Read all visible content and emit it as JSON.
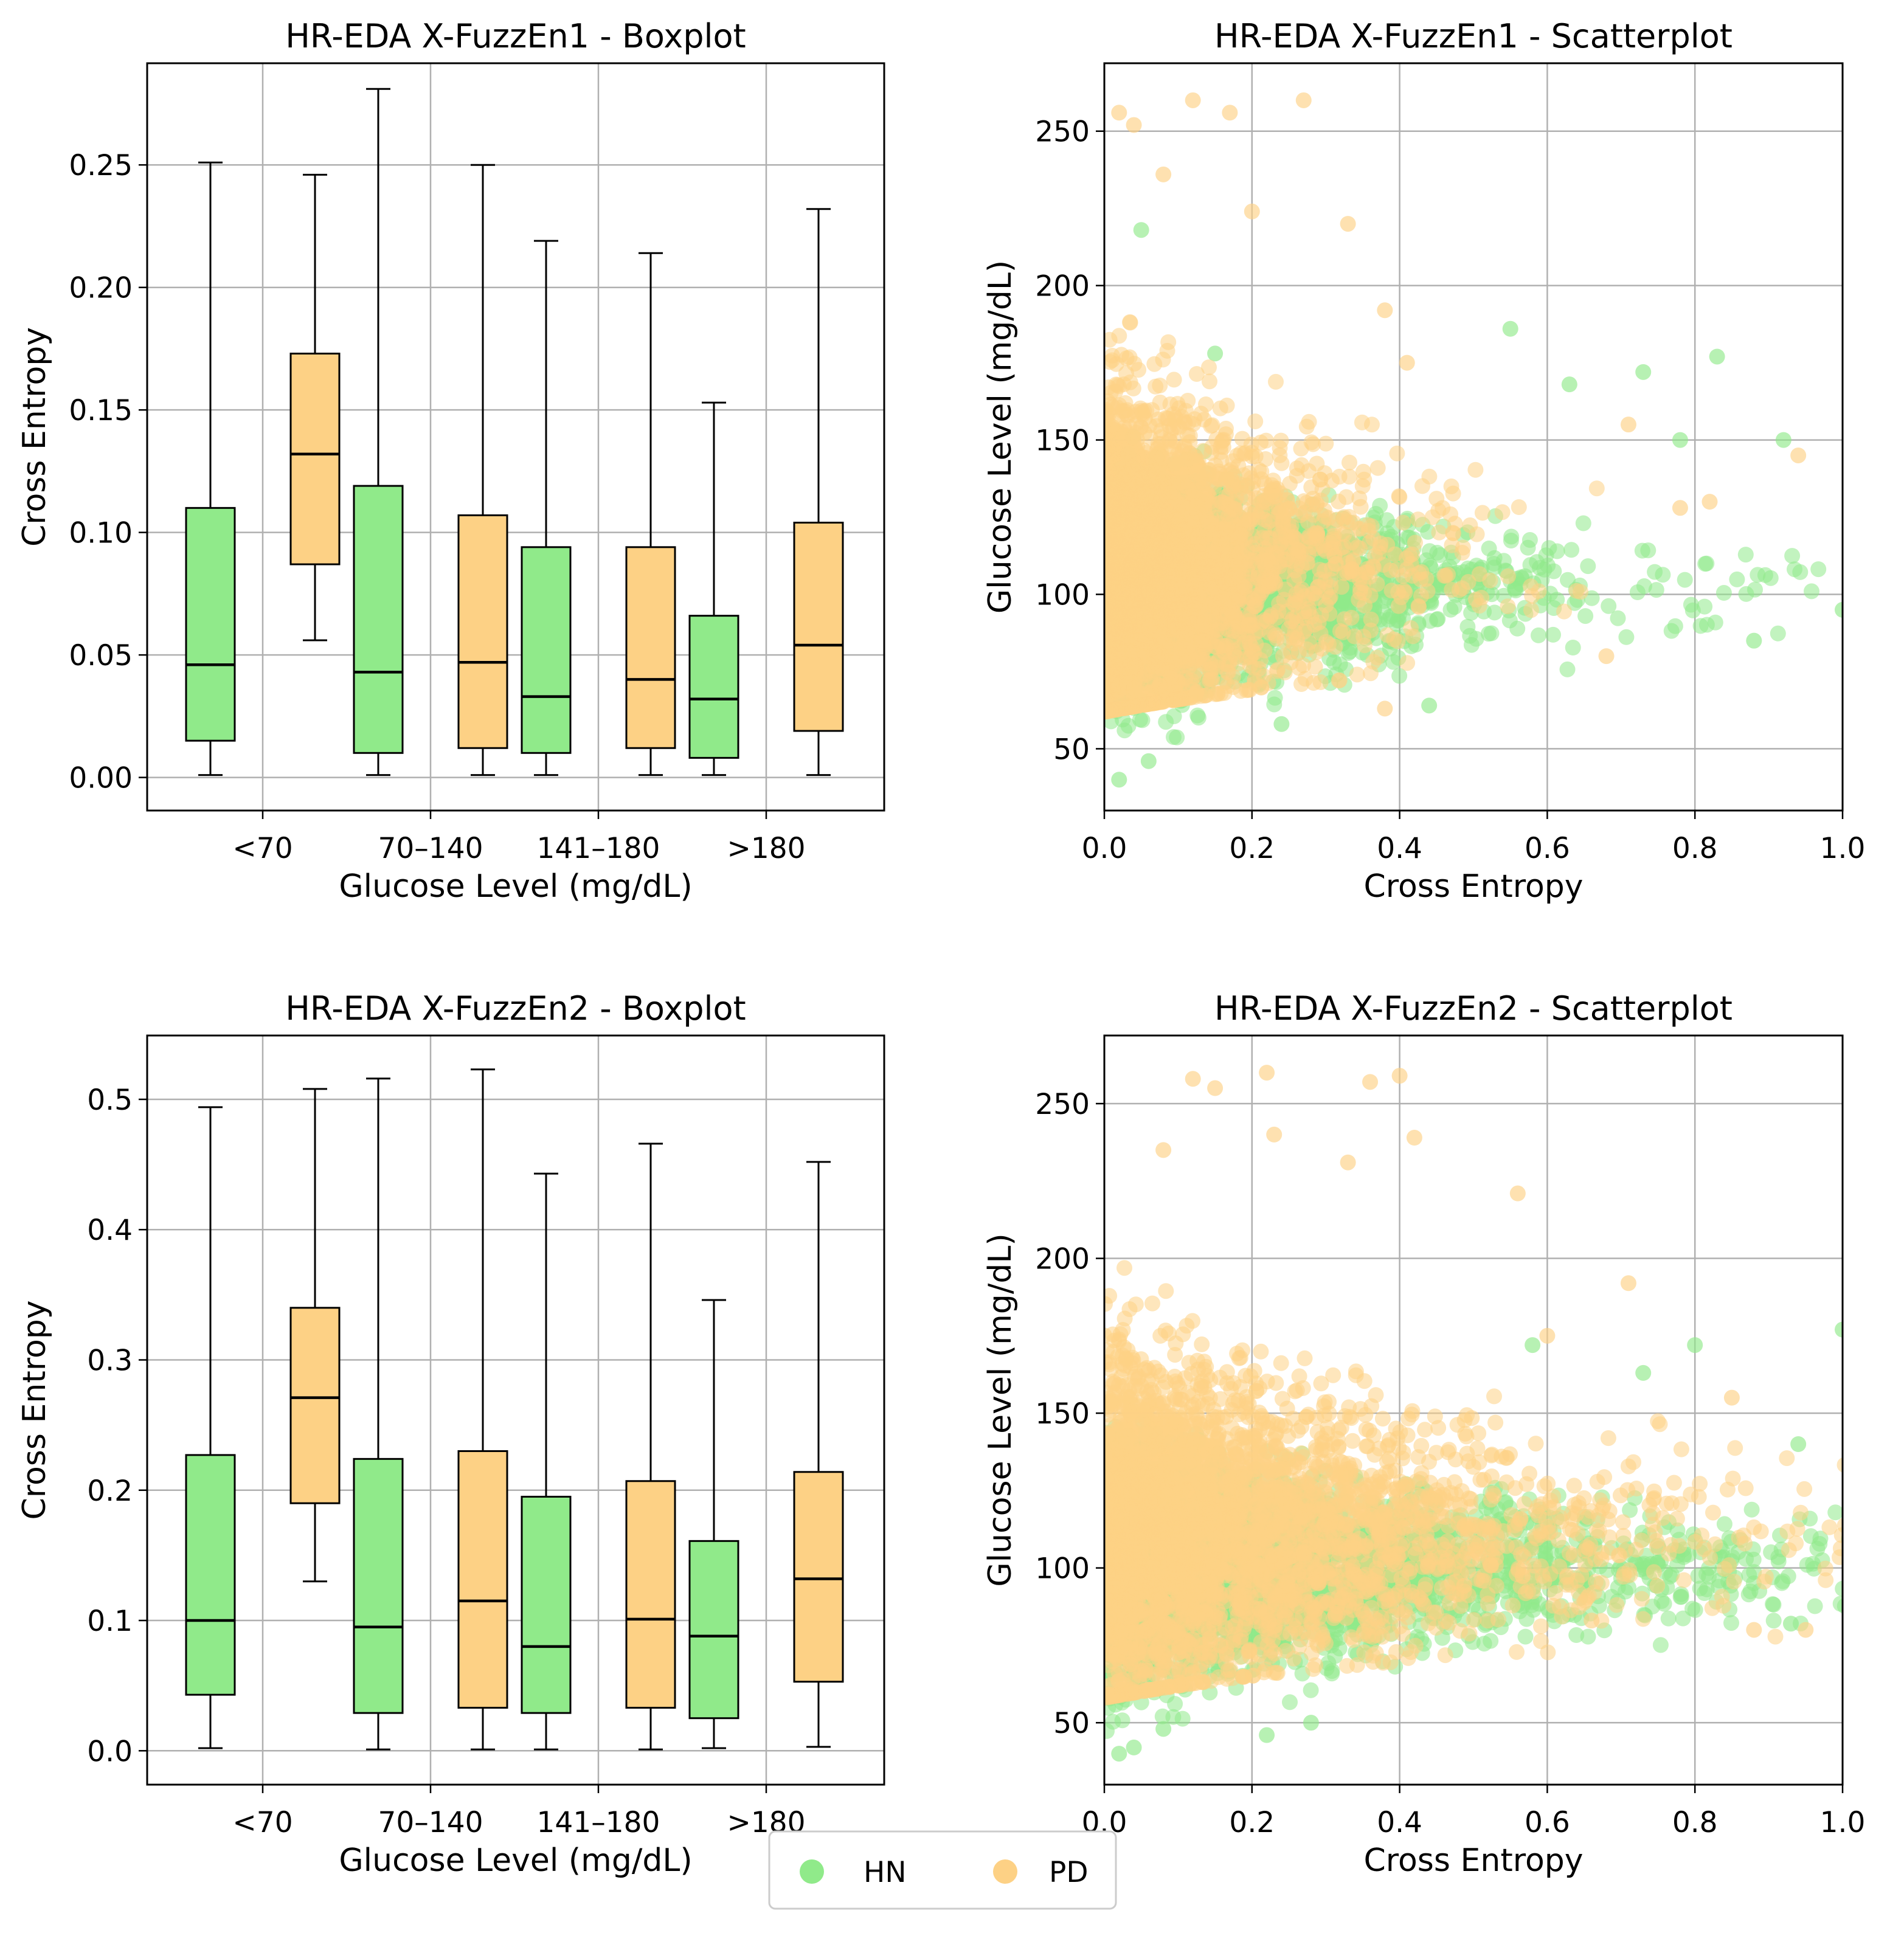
{
  "colors": {
    "hn": "#90ea8a",
    "pd": "#fdd185",
    "grid": "#b0b0b0",
    "frame": "#000000"
  },
  "legend": {
    "placement": "bottom-center",
    "items": [
      {
        "label": "HN",
        "color": "#90ea8a"
      },
      {
        "label": "PD",
        "color": "#fdd185"
      }
    ]
  },
  "chart_data": [
    {
      "type": "box",
      "title": "HR-EDA X-FuzzEn1 - Boxplot",
      "xlabel": "Glucose Level (mg/dL)",
      "ylabel": "Cross Entropy",
      "categories": [
        "<70",
        "70–140",
        "141–180",
        ">180"
      ],
      "ylim": [
        -0.0135,
        0.2915
      ],
      "yticks": [
        0.0,
        0.05,
        0.1,
        0.15,
        0.2,
        0.25
      ],
      "ytick_labels": [
        "0.00",
        "0.05",
        "0.10",
        "0.15",
        "0.20",
        "0.25"
      ],
      "grid": true,
      "series": [
        {
          "name": "HN",
          "boxes": [
            {
              "whislo": 0.001,
              "q1": 0.015,
              "med": 0.046,
              "q3": 0.11,
              "whishi": 0.251
            },
            {
              "whislo": 0.001,
              "q1": 0.01,
              "med": 0.043,
              "q3": 0.119,
              "whishi": 0.281
            },
            {
              "whislo": 0.001,
              "q1": 0.01,
              "med": 0.033,
              "q3": 0.094,
              "whishi": 0.219
            },
            {
              "whislo": 0.001,
              "q1": 0.008,
              "med": 0.032,
              "q3": 0.066,
              "whishi": 0.153
            }
          ]
        },
        {
          "name": "PD",
          "boxes": [
            {
              "whislo": 0.056,
              "q1": 0.087,
              "med": 0.132,
              "q3": 0.173,
              "whishi": 0.246
            },
            {
              "whislo": 0.001,
              "q1": 0.012,
              "med": 0.047,
              "q3": 0.107,
              "whishi": 0.25
            },
            {
              "whislo": 0.001,
              "q1": 0.012,
              "med": 0.04,
              "q3": 0.094,
              "whishi": 0.214
            },
            {
              "whislo": 0.001,
              "q1": 0.019,
              "med": 0.054,
              "q3": 0.104,
              "whishi": 0.232
            }
          ]
        }
      ]
    },
    {
      "type": "scatter",
      "title": "HR-EDA X-FuzzEn1 - Scatterplot",
      "xlabel": "Cross Entropy",
      "ylabel": "Glucose Level (mg/dL)",
      "xlim": [
        0.0,
        1.0
      ],
      "ylim": [
        30,
        272
      ],
      "xticks": [
        0.0,
        0.2,
        0.4,
        0.6,
        0.8,
        1.0
      ],
      "xtick_labels": [
        "0.0",
        "0.2",
        "0.4",
        "0.6",
        "0.8",
        "1.0"
      ],
      "yticks": [
        50,
        100,
        150,
        200,
        250
      ],
      "ytick_labels": [
        "50",
        "100",
        "150",
        "200",
        "250"
      ],
      "grid": true,
      "seed": 11,
      "series": [
        {
          "name": "HN",
          "n": 3200,
          "x_decay": 0.15,
          "y_center": 102,
          "y_spread": 18,
          "y_low": 40,
          "y_high": 185,
          "points": [
            [
              0.83,
              177
            ],
            [
              0.73,
              172
            ],
            [
              0.55,
              186
            ],
            [
              0.63,
              168
            ],
            [
              0.78,
              150
            ],
            [
              0.92,
              150
            ],
            [
              1.0,
              95
            ],
            [
              0.02,
              40
            ],
            [
              0.06,
              46
            ],
            [
              0.24,
              58
            ],
            [
              0.44,
              64
            ],
            [
              0.88,
              85
            ],
            [
              0.15,
              178
            ],
            [
              0.05,
              218
            ]
          ]
        },
        {
          "name": "PD",
          "n": 3400,
          "x_decay": 0.1,
          "y_center": 110,
          "y_spread": 28,
          "y_low": 62,
          "y_high": 262,
          "points": [
            [
              0.12,
              260
            ],
            [
              0.27,
              260
            ],
            [
              0.02,
              256
            ],
            [
              0.04,
              252
            ],
            [
              0.17,
              256
            ],
            [
              0.2,
              224
            ],
            [
              0.08,
              236
            ],
            [
              0.33,
              220
            ],
            [
              0.38,
              192
            ],
            [
              0.41,
              175
            ],
            [
              0.71,
              155
            ],
            [
              0.78,
              128
            ],
            [
              0.82,
              130
            ],
            [
              0.94,
              145
            ],
            [
              0.68,
              80
            ],
            [
              0.38,
              63
            ]
          ]
        }
      ]
    },
    {
      "type": "box",
      "title": "HR-EDA X-FuzzEn2 - Boxplot",
      "xlabel": "Glucose Level (mg/dL)",
      "ylabel": "Cross Entropy",
      "categories": [
        "<70",
        "70–140",
        "141–180",
        ">180"
      ],
      "ylim": [
        -0.026,
        0.549
      ],
      "yticks": [
        0.0,
        0.1,
        0.2,
        0.3,
        0.4,
        0.5
      ],
      "ytick_labels": [
        "0.0",
        "0.1",
        "0.2",
        "0.3",
        "0.4",
        "0.5"
      ],
      "grid": true,
      "series": [
        {
          "name": "HN",
          "boxes": [
            {
              "whislo": 0.002,
              "q1": 0.043,
              "med": 0.1,
              "q3": 0.227,
              "whishi": 0.494
            },
            {
              "whislo": 0.001,
              "q1": 0.029,
              "med": 0.095,
              "q3": 0.224,
              "whishi": 0.516
            },
            {
              "whislo": 0.001,
              "q1": 0.029,
              "med": 0.08,
              "q3": 0.195,
              "whishi": 0.443
            },
            {
              "whislo": 0.002,
              "q1": 0.025,
              "med": 0.088,
              "q3": 0.161,
              "whishi": 0.346
            }
          ]
        },
        {
          "name": "PD",
          "boxes": [
            {
              "whislo": 0.13,
              "q1": 0.19,
              "med": 0.271,
              "q3": 0.34,
              "whishi": 0.508
            },
            {
              "whislo": 0.001,
              "q1": 0.033,
              "med": 0.115,
              "q3": 0.23,
              "whishi": 0.523
            },
            {
              "whislo": 0.001,
              "q1": 0.033,
              "med": 0.101,
              "q3": 0.207,
              "whishi": 0.466
            },
            {
              "whislo": 0.003,
              "q1": 0.053,
              "med": 0.132,
              "q3": 0.214,
              "whishi": 0.452
            }
          ]
        }
      ]
    },
    {
      "type": "scatter",
      "title": "HR-EDA X-FuzzEn2 - Scatterplot",
      "xlabel": "Cross Entropy",
      "ylabel": "Glucose Level (mg/dL)",
      "xlim": [
        0.0,
        1.0
      ],
      "ylim": [
        30,
        272
      ],
      "xticks": [
        0.0,
        0.2,
        0.4,
        0.6,
        0.8,
        1.0
      ],
      "xtick_labels": [
        "0.0",
        "0.2",
        "0.4",
        "0.6",
        "0.8",
        "1.0"
      ],
      "yticks": [
        50,
        100,
        150,
        200,
        250
      ],
      "ytick_labels": [
        "50",
        "100",
        "150",
        "200",
        "250"
      ],
      "grid": true,
      "seed": 29,
      "series": [
        {
          "name": "HN",
          "n": 3200,
          "x_decay": 0.24,
          "y_center": 100,
          "y_spread": 20,
          "y_low": 40,
          "y_high": 180,
          "points": [
            [
              1.0,
              177
            ],
            [
              0.8,
              172
            ],
            [
              0.73,
              163
            ],
            [
              0.94,
              140
            ],
            [
              0.02,
              40
            ],
            [
              0.04,
              42
            ],
            [
              0.08,
              48
            ],
            [
              0.22,
              46
            ],
            [
              0.28,
              50
            ],
            [
              0.93,
              82
            ],
            [
              0.58,
              172
            ]
          ]
        },
        {
          "name": "PD",
          "n": 3400,
          "x_decay": 0.2,
          "y_center": 112,
          "y_spread": 30,
          "y_low": 58,
          "y_high": 262,
          "points": [
            [
              0.22,
              260
            ],
            [
              0.4,
              259
            ],
            [
              0.36,
              257
            ],
            [
              0.12,
              258
            ],
            [
              0.15,
              255
            ],
            [
              0.23,
              240
            ],
            [
              0.33,
              231
            ],
            [
              0.08,
              235
            ],
            [
              0.42,
              239
            ],
            [
              0.56,
              221
            ],
            [
              0.71,
              192
            ],
            [
              0.85,
              155
            ],
            [
              0.6,
              175
            ],
            [
              0.95,
              80
            ],
            [
              0.88,
              80
            ],
            [
              0.66,
              83
            ]
          ]
        }
      ]
    }
  ]
}
